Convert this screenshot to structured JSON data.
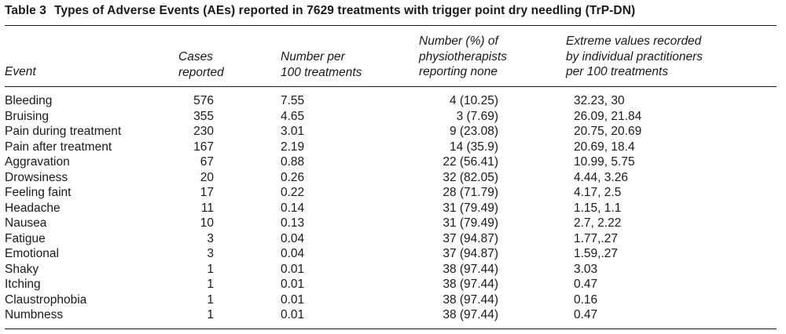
{
  "caption": {
    "label": "Table 3",
    "title": "Types of Adverse Events (AEs) reported in 7629 treatments with trigger point dry needling (TrP-DN)"
  },
  "headers": {
    "event": "Event",
    "cases": "Cases\nreported",
    "per100": "Number per\n100 treatments",
    "none": "Number (%) of\nphysiotherapists\nreporting none",
    "extreme": "Extreme values recorded\nby individual practitioners\nper 100 treatments"
  },
  "rows": [
    {
      "event": "Bleeding",
      "cases": "576",
      "per100": "7.55",
      "none": "4 (10.25)",
      "extreme": "32.23, 30"
    },
    {
      "event": "Bruising",
      "cases": "355",
      "per100": "4.65",
      "none": "3 (7.69)",
      "extreme": "26.09, 21.84"
    },
    {
      "event": "Pain during treatment",
      "cases": "230",
      "per100": "3.01",
      "none": "9 (23.08)",
      "extreme": "20.75, 20.69"
    },
    {
      "event": "Pain after treatment",
      "cases": "167",
      "per100": "2.19",
      "none": "14 (35.9)",
      "extreme": "20.69, 18.4"
    },
    {
      "event": "Aggravation",
      "cases": "67",
      "per100": "0.88",
      "none": "22 (56.41)",
      "extreme": "10.99, 5.75"
    },
    {
      "event": "Drowsiness",
      "cases": "20",
      "per100": "0.26",
      "none": "32 (82.05)",
      "extreme": "4.44, 3.26"
    },
    {
      "event": "Feeling faint",
      "cases": "17",
      "per100": "0.22",
      "none": "28 (71.79)",
      "extreme": "4.17, 2.5"
    },
    {
      "event": "Headache",
      "cases": "11",
      "per100": "0.14",
      "none": "31 (79.49)",
      "extreme": "1.15, 1.1"
    },
    {
      "event": "Nausea",
      "cases": "10",
      "per100": "0.13",
      "none": "31 (79.49)",
      "extreme": "2.7, 2.22"
    },
    {
      "event": "Fatigue",
      "cases": "3",
      "per100": "0.04",
      "none": "37 (94.87)",
      "extreme": "1.77,.27"
    },
    {
      "event": "Emotional",
      "cases": "3",
      "per100": "0.04",
      "none": "37 (94.87)",
      "extreme": "1.59,.27"
    },
    {
      "event": "Shaky",
      "cases": "1",
      "per100": "0.01",
      "none": "38 (97.44)",
      "extreme": "3.03"
    },
    {
      "event": "Itching",
      "cases": "1",
      "per100": "0.01",
      "none": "38 (97.44)",
      "extreme": "0.47"
    },
    {
      "event": "Claustrophobia",
      "cases": "1",
      "per100": "0.01",
      "none": "38 (97.44)",
      "extreme": "0.16"
    },
    {
      "event": "Numbness",
      "cases": "1",
      "per100": "0.01",
      "none": "38 (97.44)",
      "extreme": "0.47"
    }
  ]
}
